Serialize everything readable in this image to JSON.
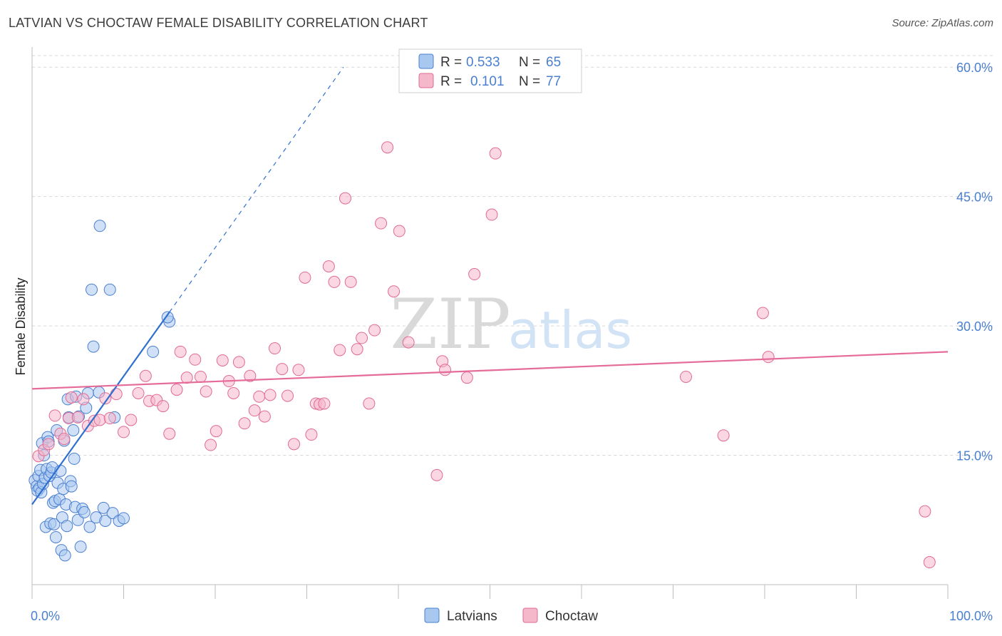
{
  "header": {
    "title": "LATVIAN VS CHOCTAW FEMALE DISABILITY CORRELATION CHART",
    "source": "Source: ZipAtlas.com"
  },
  "watermark": {
    "zip": "ZIP",
    "atlas": "atlas"
  },
  "colors": {
    "blue": "#4a7fd0",
    "blue_fill": "#a9c8f0",
    "blue_line": "#2f6fcf",
    "pink": "#e06b95",
    "pink_fill": "#f5b7ca",
    "pink_line": "#e56b98",
    "grid": "#d8d8d8"
  },
  "legend": {
    "rows": [
      {
        "r_label": "R = ",
        "r_value": "0.533",
        "n_label": "N = ",
        "n_value": "65"
      },
      {
        "r_label": "R = ",
        "r_value": "0.101",
        "n_label": "N = ",
        "n_value": "77"
      }
    ]
  },
  "chart_data": {
    "type": "scatter",
    "title": "LATVIAN VS CHOCTAW FEMALE DISABILITY CORRELATION CHART",
    "xlabel": "",
    "ylabel": "Female Disability",
    "xlim": [
      0,
      100
    ],
    "ylim": [
      0,
      62
    ],
    "x_tick_labels": {
      "left": "0.0%",
      "right": "100.0%"
    },
    "y_ticks": [
      {
        "value": 15,
        "label": "15.0%"
      },
      {
        "value": 30,
        "label": "30.0%"
      },
      {
        "value": 45,
        "label": "45.0%"
      },
      {
        "value": 60,
        "label": "60.0%"
      }
    ],
    "grid": true,
    "legend_position": "top-center",
    "series": [
      {
        "name": "Latvians",
        "R": 0.533,
        "N": 65,
        "trend": {
          "x0": 0,
          "y0": 9.3,
          "x1": 15,
          "y1": 31.6,
          "dashed_to_x": 34,
          "dashed_to_y": 60
        },
        "points": [
          [
            0.3,
            12.1
          ],
          [
            0.5,
            11.4
          ],
          [
            0.6,
            10.9
          ],
          [
            0.7,
            12.6
          ],
          [
            0.8,
            11.2
          ],
          [
            0.9,
            13.3
          ],
          [
            1.0,
            10.7
          ],
          [
            1.1,
            16.4
          ],
          [
            1.2,
            11.7
          ],
          [
            1.3,
            15.0
          ],
          [
            1.4,
            12.4
          ],
          [
            1.5,
            6.7
          ],
          [
            1.6,
            13.4
          ],
          [
            1.7,
            17.1
          ],
          [
            1.8,
            16.6
          ],
          [
            1.9,
            12.6
          ],
          [
            2.0,
            7.1
          ],
          [
            2.1,
            13.0
          ],
          [
            2.2,
            13.6
          ],
          [
            2.3,
            9.5
          ],
          [
            2.4,
            7.0
          ],
          [
            2.5,
            9.7
          ],
          [
            2.6,
            5.5
          ],
          [
            2.7,
            17.9
          ],
          [
            2.8,
            11.8
          ],
          [
            3.0,
            9.9
          ],
          [
            3.1,
            13.2
          ],
          [
            3.2,
            4.0
          ],
          [
            3.3,
            7.8
          ],
          [
            3.4,
            11.1
          ],
          [
            3.5,
            16.7
          ],
          [
            3.6,
            3.4
          ],
          [
            3.7,
            9.3
          ],
          [
            3.8,
            6.8
          ],
          [
            3.9,
            21.5
          ],
          [
            4.0,
            19.4
          ],
          [
            4.2,
            12.0
          ],
          [
            4.3,
            11.4
          ],
          [
            4.5,
            17.9
          ],
          [
            4.6,
            14.6
          ],
          [
            4.7,
            9.0
          ],
          [
            4.8,
            21.8
          ],
          [
            5.0,
            7.5
          ],
          [
            5.1,
            19.5
          ],
          [
            5.3,
            4.4
          ],
          [
            5.5,
            8.8
          ],
          [
            5.7,
            8.4
          ],
          [
            5.9,
            20.5
          ],
          [
            6.1,
            22.2
          ],
          [
            6.3,
            6.7
          ],
          [
            6.5,
            34.2
          ],
          [
            6.7,
            27.6
          ],
          [
            7.0,
            7.8
          ],
          [
            7.4,
            41.6
          ],
          [
            7.8,
            8.9
          ],
          [
            7.3,
            22.3
          ],
          [
            8.0,
            7.4
          ],
          [
            8.5,
            34.2
          ],
          [
            8.8,
            8.3
          ],
          [
            9.0,
            19.4
          ],
          [
            9.5,
            7.4
          ],
          [
            10.0,
            7.7
          ],
          [
            15.0,
            30.5
          ],
          [
            14.8,
            31.0
          ],
          [
            13.2,
            27.0
          ]
        ]
      },
      {
        "name": "Choctaw",
        "R": 0.101,
        "N": 77,
        "trend": {
          "x0": 0,
          "y0": 22.7,
          "x1": 100,
          "y1": 27.0
        },
        "points": [
          [
            0.7,
            14.9
          ],
          [
            1.3,
            15.6
          ],
          [
            1.8,
            16.3
          ],
          [
            2.5,
            19.6
          ],
          [
            3.1,
            17.5
          ],
          [
            3.5,
            16.9
          ],
          [
            4.0,
            19.3
          ],
          [
            4.3,
            21.7
          ],
          [
            5.0,
            19.4
          ],
          [
            5.6,
            21.5
          ],
          [
            6.1,
            18.4
          ],
          [
            6.8,
            19.0
          ],
          [
            7.4,
            19.1
          ],
          [
            8.0,
            21.6
          ],
          [
            8.5,
            19.3
          ],
          [
            9.2,
            22.1
          ],
          [
            10.0,
            17.7
          ],
          [
            10.8,
            19.1
          ],
          [
            11.6,
            22.2
          ],
          [
            12.4,
            24.2
          ],
          [
            12.8,
            21.3
          ],
          [
            13.6,
            21.4
          ],
          [
            14.3,
            20.7
          ],
          [
            15.0,
            17.5
          ],
          [
            15.8,
            22.6
          ],
          [
            16.2,
            27.0
          ],
          [
            16.9,
            24.0
          ],
          [
            17.8,
            26.1
          ],
          [
            18.4,
            24.1
          ],
          [
            19.0,
            22.4
          ],
          [
            19.5,
            16.2
          ],
          [
            20.1,
            17.8
          ],
          [
            20.8,
            26.0
          ],
          [
            21.5,
            23.6
          ],
          [
            22.0,
            22.2
          ],
          [
            22.6,
            25.8
          ],
          [
            23.2,
            18.7
          ],
          [
            23.8,
            24.2
          ],
          [
            24.3,
            20.2
          ],
          [
            24.8,
            21.8
          ],
          [
            25.4,
            19.5
          ],
          [
            26.0,
            22.0
          ],
          [
            26.5,
            27.4
          ],
          [
            27.3,
            25.0
          ],
          [
            27.9,
            21.9
          ],
          [
            28.6,
            16.3
          ],
          [
            29.1,
            24.9
          ],
          [
            29.8,
            35.6
          ],
          [
            30.5,
            17.4
          ],
          [
            31.0,
            21.0
          ],
          [
            31.4,
            20.9
          ],
          [
            31.9,
            21.0
          ],
          [
            32.4,
            36.9
          ],
          [
            33.0,
            35.1
          ],
          [
            33.6,
            27.2
          ],
          [
            34.2,
            44.8
          ],
          [
            34.8,
            35.1
          ],
          [
            35.5,
            27.3
          ],
          [
            36.0,
            28.6
          ],
          [
            36.8,
            21.0
          ],
          [
            37.4,
            29.5
          ],
          [
            38.1,
            41.9
          ],
          [
            38.8,
            50.7
          ],
          [
            39.5,
            34.0
          ],
          [
            40.1,
            41.0
          ],
          [
            41.1,
            28.1
          ],
          [
            44.8,
            25.9
          ],
          [
            45.1,
            24.9
          ],
          [
            44.2,
            12.7
          ],
          [
            47.5,
            24.0
          ],
          [
            48.3,
            36.0
          ],
          [
            50.2,
            42.9
          ],
          [
            50.6,
            50.0
          ],
          [
            71.4,
            24.1
          ],
          [
            75.5,
            17.3
          ],
          [
            79.8,
            31.5
          ],
          [
            80.4,
            26.4
          ]
        ]
      }
    ],
    "extra_pink_points": [
      [
        97.5,
        8.5
      ],
      [
        98.0,
        2.6
      ]
    ]
  },
  "bottom_legend": [
    {
      "label": "Latvians"
    },
    {
      "label": "Choctaw"
    }
  ]
}
